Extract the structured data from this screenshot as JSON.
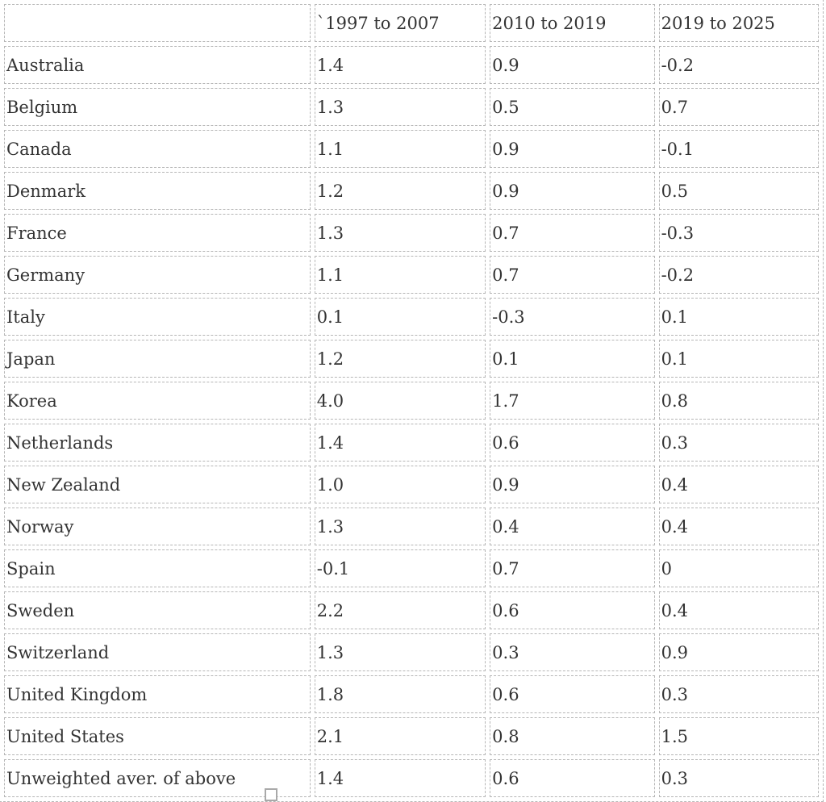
{
  "colors": {
    "border_dashed": "#b6b6b6",
    "text": "#333333",
    "background": "#ffffff",
    "handle_border": "#a9a9a9"
  },
  "table": {
    "columns": [
      "",
      "`1997 to 2007",
      "2010 to 2019",
      "2019 to 2025"
    ],
    "rows": [
      {
        "label": "Australia",
        "values": [
          "1.4",
          "0.9",
          "-0.2"
        ]
      },
      {
        "label": "Belgium",
        "values": [
          "1.3",
          "0.5",
          "0.7"
        ]
      },
      {
        "label": "Canada",
        "values": [
          "1.1",
          "0.9",
          "-0.1"
        ]
      },
      {
        "label": "Denmark",
        "values": [
          "1.2",
          "0.9",
          "0.5"
        ]
      },
      {
        "label": "France",
        "values": [
          "1.3",
          "0.7",
          "-0.3"
        ]
      },
      {
        "label": "Germany",
        "values": [
          "1.1",
          "0.7",
          "-0.2"
        ]
      },
      {
        "label": "Italy",
        "values": [
          "0.1",
          "-0.3",
          "0.1"
        ]
      },
      {
        "label": "Japan",
        "values": [
          "1.2",
          "0.1",
          "0.1"
        ]
      },
      {
        "label": "Korea",
        "values": [
          "4.0",
          "1.7",
          "0.8"
        ]
      },
      {
        "label": "Netherlands",
        "values": [
          "1.4",
          "0.6",
          "0.3"
        ]
      },
      {
        "label": "New Zealand",
        "values": [
          "1.0",
          "0.9",
          "0.4"
        ]
      },
      {
        "label": "Norway",
        "values": [
          "1.3",
          "0.4",
          "0.4"
        ]
      },
      {
        "label": "Spain",
        "values": [
          "-0.1",
          "0.7",
          "0"
        ]
      },
      {
        "label": "Sweden",
        "values": [
          "2.2",
          "0.6",
          "0.4"
        ]
      },
      {
        "label": "Switzerland",
        "values": [
          "1.3",
          "0.3",
          "0.9"
        ]
      },
      {
        "label": "United Kingdom",
        "values": [
          "1.8",
          "0.6",
          "0.3"
        ]
      },
      {
        "label": "United States",
        "values": [
          "2.1",
          "0.8",
          "1.5"
        ]
      },
      {
        "label": "Unweighted aver. of above",
        "values": [
          "1.4",
          "0.6",
          "0.3"
        ]
      }
    ]
  }
}
